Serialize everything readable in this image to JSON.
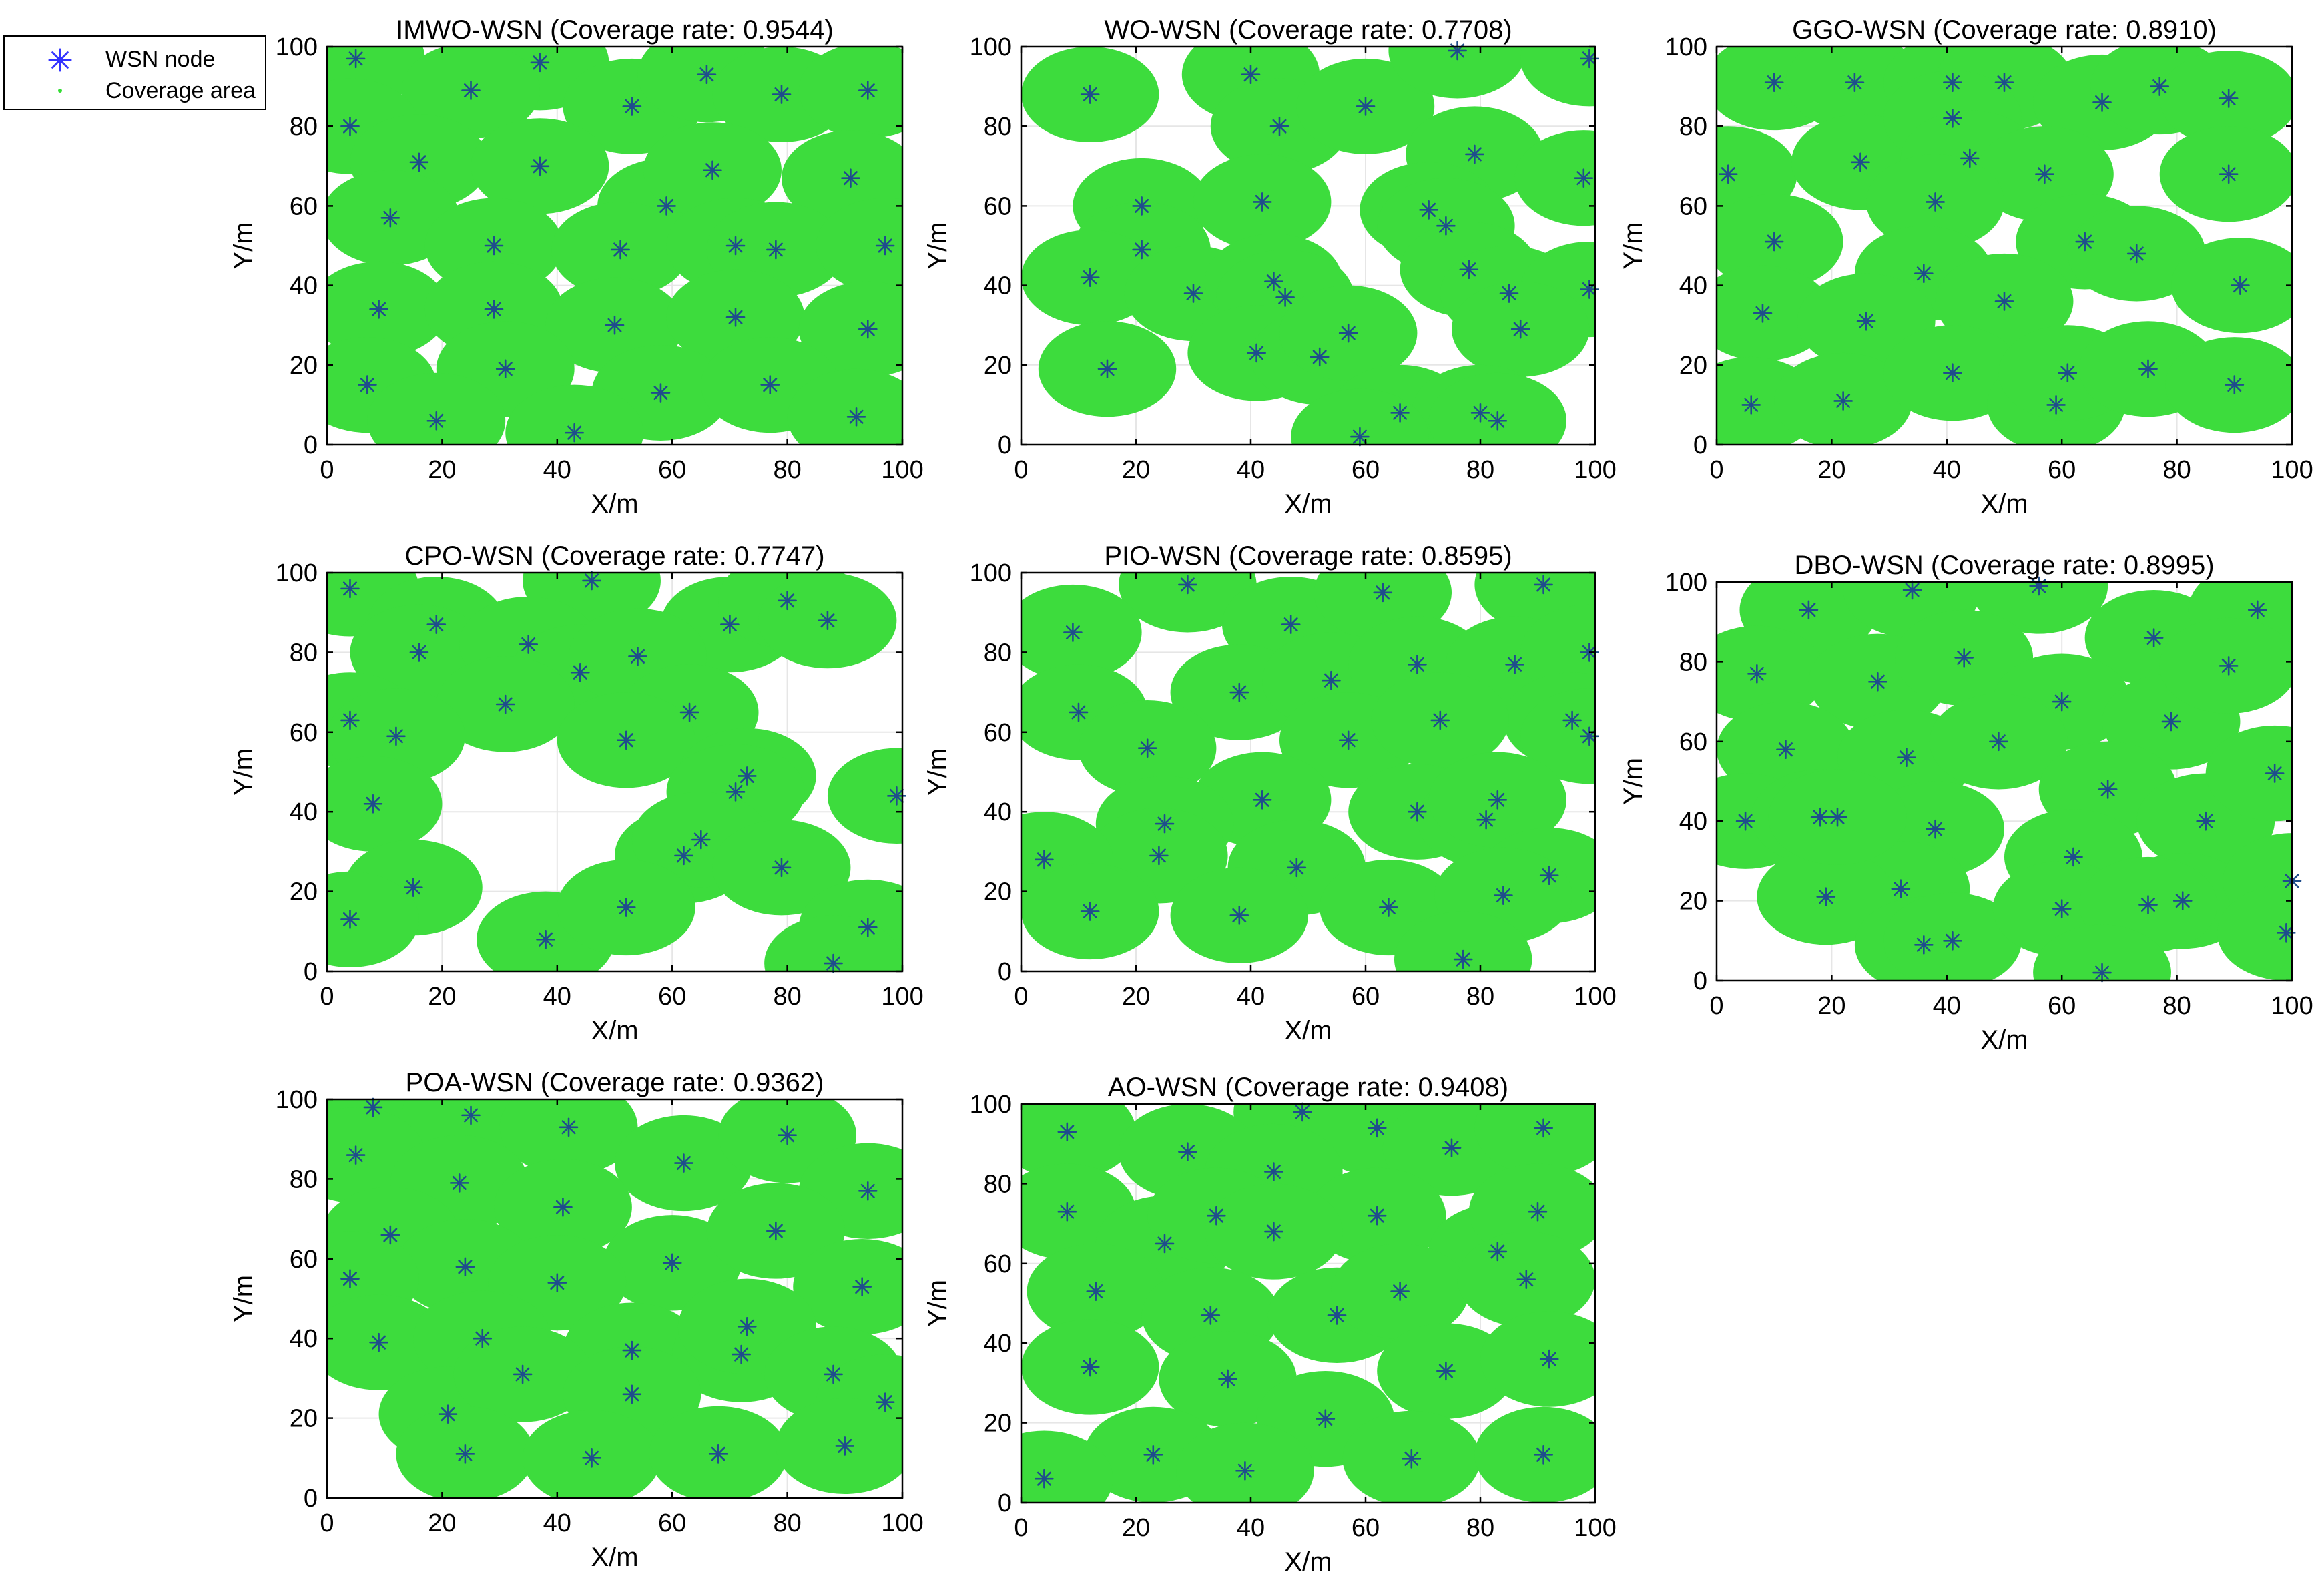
{
  "legend": {
    "items": [
      {
        "label": "WSN node",
        "marker": "asterisk",
        "color": "#3d3dff"
      },
      {
        "label": "Coverage area",
        "marker": "dot",
        "color": "#33dd33"
      }
    ]
  },
  "style": {
    "coverage_color": "#3ddc3d",
    "node_color": "#1f4d8c",
    "legend_node_color": "#3333ff"
  },
  "chart_data": [
    {
      "type": "scatter",
      "title": "IMWO-WSN (Coverage rate: 0.9544)",
      "xlabel": "X/m",
      "ylabel": "Y/m",
      "xlim": [
        0,
        100
      ],
      "ylim": [
        0,
        100
      ],
      "xticks": [
        "0",
        "20",
        "40",
        "60",
        "80",
        "100"
      ],
      "yticks": [
        "0",
        "20",
        "40",
        "60",
        "80",
        "100"
      ],
      "sensing_radius": 12,
      "coverage_rate": 0.9544,
      "grid": true,
      "series": [
        {
          "name": "WSN node",
          "x": [
            5,
            37,
            25,
            53,
            66,
            79,
            94,
            4,
            16,
            37,
            59,
            67,
            91,
            11,
            29,
            51,
            71,
            78,
            97,
            9,
            29,
            50,
            71,
            94,
            7,
            31,
            58,
            77,
            92,
            19,
            43
          ],
          "y": [
            97,
            96,
            89,
            85,
            93,
            88,
            89,
            80,
            71,
            70,
            60,
            69,
            67,
            57,
            50,
            49,
            50,
            49,
            50,
            34,
            34,
            30,
            32,
            29,
            15,
            19,
            13,
            15,
            7,
            6,
            3
          ]
        }
      ]
    },
    {
      "type": "scatter",
      "title": "WO-WSN (Coverage rate: 0.7708)",
      "xlabel": "X/m",
      "ylabel": "Y/m",
      "xlim": [
        0,
        100
      ],
      "ylim": [
        0,
        100
      ],
      "xticks": [
        "0",
        "20",
        "40",
        "60",
        "80",
        "100"
      ],
      "yticks": [
        "0",
        "20",
        "40",
        "60",
        "80",
        "100"
      ],
      "sensing_radius": 12,
      "coverage_rate": 0.7708,
      "grid": true,
      "series": [
        {
          "name": "WSN node",
          "x": [
            12,
            40,
            45,
            60,
            76,
            99,
            21,
            42,
            79,
            98,
            21,
            71,
            74,
            12,
            30,
            44,
            46,
            78,
            85,
            99,
            15,
            41,
            52,
            57,
            87,
            66,
            80,
            83,
            59
          ],
          "y": [
            88,
            93,
            80,
            85,
            99,
            97,
            60,
            61,
            73,
            67,
            49,
            59,
            55,
            42,
            38,
            41,
            37,
            44,
            38,
            39,
            19,
            23,
            22,
            28,
            29,
            8,
            8,
            6,
            2
          ]
        }
      ]
    },
    {
      "type": "scatter",
      "title": "GGO-WSN (Coverage rate: 0.8910)",
      "xlabel": "X/m",
      "ylabel": "Y/m",
      "xlim": [
        0,
        100
      ],
      "ylim": [
        0,
        100
      ],
      "xticks": [
        "0",
        "20",
        "40",
        "60",
        "80",
        "100"
      ],
      "yticks": [
        "0",
        "20",
        "40",
        "60",
        "80",
        "100"
      ],
      "sensing_radius": 12,
      "coverage_rate": 0.891,
      "grid": true,
      "series": [
        {
          "name": "WSN node",
          "x": [
            10,
            24,
            41,
            50,
            67,
            77,
            89,
            2,
            25,
            41,
            44,
            57,
            89,
            10,
            38,
            64,
            73,
            36,
            8,
            26,
            50,
            91,
            6,
            22,
            41,
            59,
            61,
            75,
            90
          ],
          "y": [
            91,
            91,
            91,
            91,
            86,
            90,
            87,
            68,
            71,
            82,
            72,
            68,
            68,
            51,
            61,
            51,
            48,
            43,
            33,
            31,
            36,
            40,
            10,
            11,
            18,
            10,
            18,
            19,
            15
          ]
        }
      ]
    },
    {
      "type": "scatter",
      "title": "CPO-WSN (Coverage rate: 0.7747)",
      "xlabel": "X/m",
      "ylabel": "Y/m",
      "xlim": [
        0,
        100
      ],
      "ylim": [
        0,
        100
      ],
      "xticks": [
        "0",
        "20",
        "40",
        "60",
        "80",
        "100"
      ],
      "yticks": [
        "0",
        "20",
        "40",
        "60",
        "80",
        "100"
      ],
      "sensing_radius": 12,
      "coverage_rate": 0.7747,
      "grid": true,
      "series": [
        {
          "name": "WSN node",
          "x": [
            4,
            19,
            46,
            70,
            80,
            87,
            16,
            35,
            44,
            54,
            4,
            31,
            63,
            12,
            52,
            73,
            8,
            71,
            99,
            62,
            65,
            15,
            79,
            4,
            38,
            52,
            94,
            88
          ],
          "y": [
            96,
            87,
            98,
            87,
            93,
            88,
            80,
            82,
            75,
            79,
            63,
            67,
            65,
            59,
            58,
            49,
            42,
            45,
            44,
            29,
            33,
            21,
            26,
            13,
            8,
            16,
            11,
            2
          ]
        }
      ]
    },
    {
      "type": "scatter",
      "title": "PIO-WSN (Coverage rate: 0.8595)",
      "xlabel": "X/m",
      "ylabel": "Y/m",
      "xlim": [
        0,
        100
      ],
      "ylim": [
        0,
        100
      ],
      "xticks": [
        "0",
        "20",
        "40",
        "60",
        "80",
        "100"
      ],
      "yticks": [
        "0",
        "20",
        "40",
        "60",
        "80",
        "100"
      ],
      "sensing_radius": 12,
      "coverage_rate": 0.8595,
      "grid": true,
      "series": [
        {
          "name": "WSN node",
          "x": [
            29,
            47,
            63,
            91,
            9,
            38,
            54,
            69,
            86,
            99,
            10,
            96,
            99,
            22,
            57,
            73,
            42,
            69,
            81,
            83,
            25,
            24,
            4,
            48,
            12,
            38,
            64,
            92,
            84,
            77
          ],
          "y": [
            97,
            87,
            95,
            97,
            85,
            70,
            73,
            77,
            77,
            80,
            65,
            63,
            59,
            56,
            58,
            63,
            43,
            40,
            38,
            43,
            37,
            29,
            28,
            26,
            15,
            14,
            16,
            24,
            19,
            3
          ]
        }
      ]
    },
    {
      "type": "scatter",
      "title": "DBO-WSN (Coverage rate: 0.8995)",
      "xlabel": "X/m",
      "ylabel": "Y/m",
      "xlim": [
        0,
        100
      ],
      "ylim": [
        0,
        100
      ],
      "xticks": [
        "0",
        "20",
        "40",
        "60",
        "80",
        "100"
      ],
      "yticks": [
        "0",
        "20",
        "40",
        "60",
        "80",
        "100"
      ],
      "sensing_radius": 12,
      "coverage_rate": 0.8995,
      "grid": true,
      "series": [
        {
          "name": "WSN node",
          "x": [
            16,
            34,
            56,
            76,
            94,
            7,
            28,
            43,
            60,
            79,
            89,
            12,
            33,
            49,
            68,
            5,
            18,
            38,
            85,
            97,
            32,
            62,
            81,
            100,
            19,
            21,
            36,
            41,
            60,
            75,
            99,
            67
          ],
          "y": [
            93,
            98,
            99,
            86,
            93,
            77,
            75,
            81,
            70,
            65,
            79,
            58,
            56,
            60,
            48,
            40,
            41,
            38,
            40,
            52,
            23,
            31,
            20,
            25,
            21,
            41,
            9,
            10,
            18,
            19,
            12,
            2
          ]
        }
      ]
    },
    {
      "type": "scatter",
      "title": "POA-WSN (Coverage rate: 0.9362)",
      "xlabel": "X/m",
      "ylabel": "Y/m",
      "xlim": [
        0,
        100
      ],
      "ylim": [
        0,
        100
      ],
      "xticks": [
        "0",
        "20",
        "40",
        "60",
        "80",
        "100"
      ],
      "yticks": [
        "0",
        "20",
        "40",
        "60",
        "80",
        "100"
      ],
      "sensing_radius": 12,
      "coverage_rate": 0.9362,
      "grid": true,
      "series": [
        {
          "name": "WSN node",
          "x": [
            8,
            25,
            42,
            62,
            80,
            5,
            23,
            41,
            94,
            11,
            24,
            60,
            78,
            4,
            40,
            93,
            9,
            27,
            53,
            72,
            73,
            21,
            34,
            53,
            88,
            97,
            24,
            46,
            68,
            90
          ],
          "y": [
            98,
            96,
            93,
            84,
            91,
            86,
            79,
            73,
            77,
            66,
            58,
            59,
            67,
            55,
            54,
            53,
            39,
            40,
            37,
            36,
            43,
            21,
            31,
            26,
            31,
            24,
            11,
            10,
            11,
            13
          ]
        }
      ]
    },
    {
      "type": "scatter",
      "title": "AO-WSN (Coverage rate: 0.9408)",
      "xlabel": "X/m",
      "ylabel": "Y/m",
      "xlim": [
        0,
        100
      ],
      "ylim": [
        0,
        100
      ],
      "xticks": [
        "0",
        "20",
        "40",
        "60",
        "80",
        "100"
      ],
      "yticks": [
        "0",
        "20",
        "40",
        "60",
        "80",
        "100"
      ],
      "sensing_radius": 12,
      "coverage_rate": 0.9408,
      "grid": true,
      "series": [
        {
          "name": "WSN node",
          "x": [
            8,
            49,
            62,
            75,
            91,
            29,
            44,
            8,
            25,
            34,
            62,
            83,
            90,
            44,
            13,
            33,
            55,
            66,
            88,
            36,
            74,
            12,
            92,
            53,
            23,
            68,
            91,
            4,
            39
          ],
          "y": [
            93,
            98,
            94,
            89,
            94,
            88,
            83,
            73,
            65,
            72,
            72,
            63,
            73,
            68,
            53,
            47,
            47,
            53,
            56,
            31,
            33,
            34,
            36,
            21,
            12,
            11,
            12,
            6,
            8
          ]
        }
      ]
    }
  ]
}
